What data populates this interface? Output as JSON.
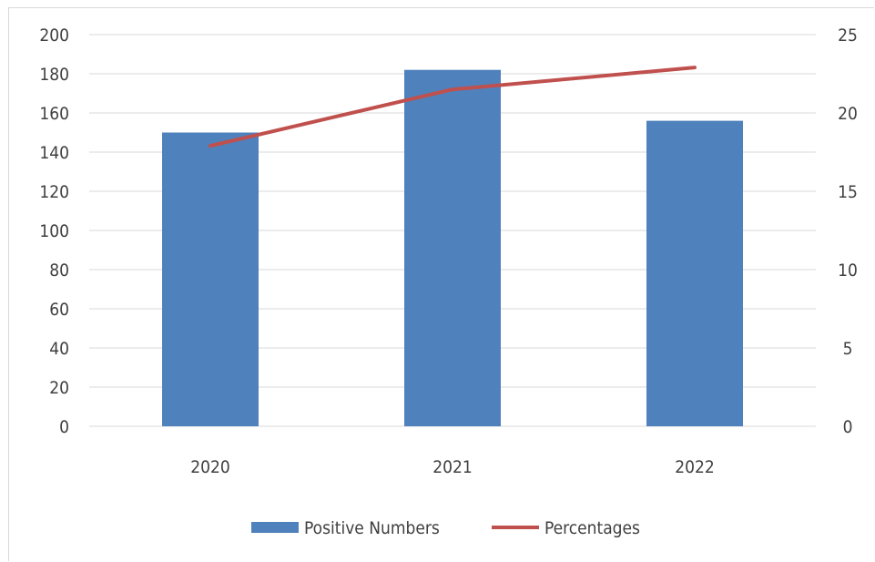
{
  "chart_data": {
    "type": "bar",
    "title": "",
    "categories": [
      "2020",
      "2021",
      "2022"
    ],
    "series": [
      {
        "name": "Positive Numbers",
        "kind": "bar",
        "axis": "left",
        "color": "#4f81bd",
        "values": [
          150,
          182,
          156
        ]
      },
      {
        "name": "Percentages",
        "kind": "line",
        "axis": "right",
        "color": "#c0504d",
        "values": [
          17.9,
          21.5,
          22.9
        ]
      }
    ],
    "y_left": {
      "min": 0,
      "max": 200,
      "step": 20,
      "ticks": [
        "0",
        "20",
        "40",
        "60",
        "80",
        "100",
        "120",
        "140",
        "160",
        "180",
        "200"
      ]
    },
    "y_right": {
      "min": 0,
      "max": 25,
      "step": 5,
      "ticks": [
        "0",
        "5",
        "10",
        "15",
        "20",
        "25"
      ]
    },
    "grid": true,
    "legend_position": "bottom"
  }
}
